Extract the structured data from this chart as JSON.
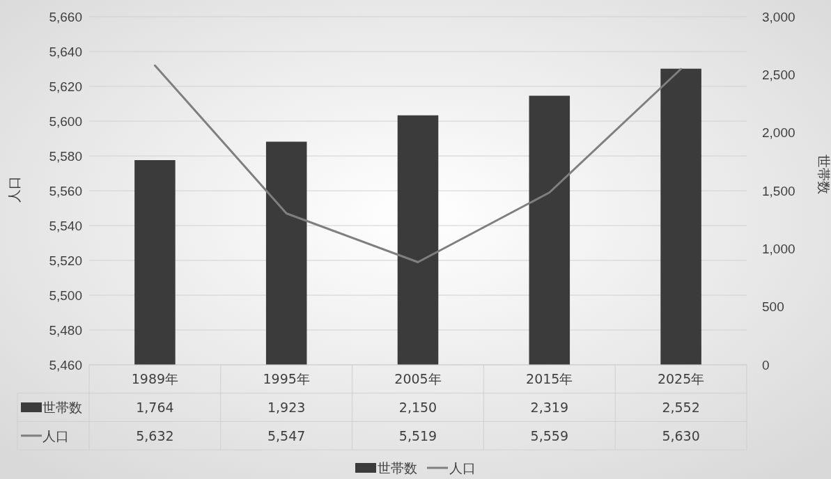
{
  "chart_data": {
    "type": "bar",
    "categories": [
      "1989年",
      "1995年",
      "2005年",
      "2015年",
      "2025年"
    ],
    "series": [
      {
        "name": "世帯数",
        "axis": "y2",
        "color": "#3b3b3b",
        "values": [
          1764,
          1923,
          2150,
          2319,
          2552
        ],
        "value_labels": [
          "1,764",
          "1,923",
          "2,150",
          "2,319",
          "2,552"
        ]
      },
      {
        "name": "人口",
        "type": "line",
        "axis": "y",
        "color": "#7f7f7f",
        "values": [
          5632,
          5547,
          5519,
          5559,
          5630
        ],
        "value_labels": [
          "5,632",
          "5,547",
          "5,519",
          "5,559",
          "5,630"
        ]
      }
    ],
    "ylabel": "人口",
    "y2label": "世帯数",
    "ylim": [
      5460,
      5660
    ],
    "yticks": [
      {
        "value": 5460,
        "label": "5,460"
      },
      {
        "value": 5480,
        "label": "5,480"
      },
      {
        "value": 5500,
        "label": "5,500"
      },
      {
        "value": 5520,
        "label": "5,520"
      },
      {
        "value": 5540,
        "label": "5,540"
      },
      {
        "value": 5560,
        "label": "5,560"
      },
      {
        "value": 5580,
        "label": "5,580"
      },
      {
        "value": 5600,
        "label": "5,600"
      },
      {
        "value": 5620,
        "label": "5,620"
      },
      {
        "value": 5640,
        "label": "5,640"
      },
      {
        "value": 5660,
        "label": "5,660"
      }
    ],
    "y2lim": [
      0,
      3000
    ],
    "y2ticks": [
      0,
      500,
      {
        "value": 1000,
        "label": "1,000"
      },
      {
        "value": 1500,
        "label": "1,500"
      },
      {
        "value": 2000,
        "label": "2,000"
      },
      {
        "value": 2500,
        "label": "2,500"
      },
      {
        "value": 3000,
        "label": "3,000"
      }
    ],
    "grid": "y",
    "legend": "bottom",
    "marker": "none",
    "line_style": "solid"
  }
}
